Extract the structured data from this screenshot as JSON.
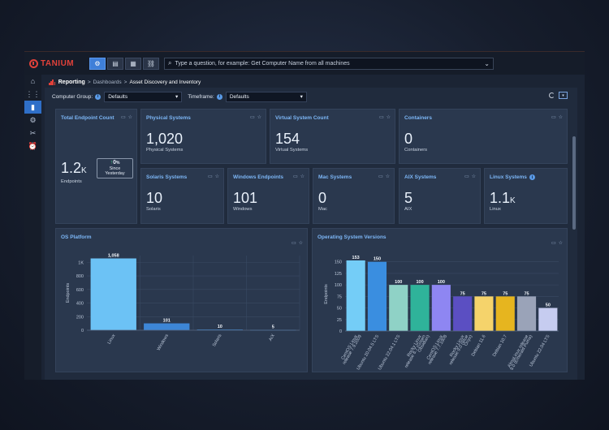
{
  "app": {
    "logo": "TANIUM"
  },
  "toolbar": {
    "modes": [
      "⚙",
      "▤",
      "▦",
      "⛓"
    ],
    "search_placeholder": "Type a question, for example: Get Computer Name from all machines"
  },
  "sidebar": {
    "items": [
      "⌂",
      "⋮⋮",
      "▮",
      "⚙",
      "✂",
      "⏰"
    ]
  },
  "breadcrumb": {
    "section": "Reporting",
    "sep": ">",
    "parent": "Dashboards",
    "current": "Asset Discovery and Inventory"
  },
  "filters": {
    "group_label": "Computer Group:",
    "group_value": "Defaults",
    "time_label": "Timeframe:",
    "time_value": "Defaults",
    "info": "i",
    "caret": "▾"
  },
  "total": {
    "title": "Total Endpoint Count",
    "value": "1.2",
    "suffix": "K",
    "label": "Endpoints",
    "delta_arrow": "↑",
    "delta_value": "0",
    "delta_pct": "%",
    "delta_text1": "Since",
    "delta_text2": "Yesterday"
  },
  "kpis": [
    {
      "title": "Physical Systems",
      "value": "1,020",
      "suffix": "",
      "label": "Physical Systems"
    },
    {
      "title": "Virtual System Count",
      "value": "154",
      "suffix": "",
      "label": "Virtual Systems"
    },
    {
      "title": "Containers",
      "value": "0",
      "suffix": "",
      "label": "Containers"
    },
    {
      "title": "Solaris Systems",
      "value": "10",
      "suffix": "",
      "label": "Solaris"
    },
    {
      "title": "Windows Endpoints",
      "value": "101",
      "suffix": "",
      "label": "Windows"
    },
    {
      "title": "Mac Systems",
      "value": "0",
      "suffix": "",
      "label": "Mac"
    },
    {
      "title": "AIX Systems",
      "value": "5",
      "suffix": "",
      "label": "AIX"
    },
    {
      "title": "Linux Systems",
      "value": "1.1",
      "suffix": "K",
      "label": "Linux"
    }
  ],
  "chart_data": [
    {
      "type": "bar",
      "title": "OS Platform",
      "ylabel": "Endpoints",
      "categories": [
        "Linux",
        "Windows",
        "Solaris",
        "AIX"
      ],
      "values": [
        1058,
        101,
        10,
        5
      ],
      "value_labels": [
        "1,058",
        "101",
        "10",
        "5"
      ],
      "yticks": [
        0,
        200,
        400,
        600,
        800,
        1000
      ],
      "ytick_labels": [
        "0",
        "200",
        "400",
        "600",
        "800",
        "1K"
      ],
      "ylim": [
        0,
        1100
      ],
      "colors": [
        "#6cc2f5",
        "#3d86d6",
        "#3d86d6",
        "#3d86d6"
      ],
      "grid": true
    },
    {
      "type": "bar",
      "title": "Operating System Versions",
      "ylabel": "Endpoints",
      "categories": [
        "CentOS Linux release 7.9.2009",
        "Ubuntu 20.04.5 LTS",
        "Ubuntu 22.04.1 LTS",
        "Rocky Linux release 8.7 (Green Obsidian)",
        "CentOS Linux release 7.7.1908",
        "Rocky Linux release 9.0 (Blue Onyx)",
        "Debian 11.6",
        "Debian 10.7",
        "AlmaLinux release 9.0 (Emerald Puma)",
        "Ubuntu 22.04 LTS"
      ],
      "values": [
        153,
        150,
        100,
        100,
        100,
        75,
        75,
        75,
        75,
        50
      ],
      "yticks": [
        0,
        25,
        50,
        75,
        100,
        125,
        150
      ],
      "ylim": [
        0,
        160
      ],
      "colors": [
        "#74cdf7",
        "#3a8ee0",
        "#8fd2c6",
        "#2fb39a",
        "#8e86f2",
        "#5b4fc2",
        "#f5d36b",
        "#e6b51f",
        "#9aa3b8",
        "#c6ccf0"
      ],
      "grid": true
    }
  ],
  "card_tools": {
    "monitor": "▭",
    "star": "☆"
  }
}
